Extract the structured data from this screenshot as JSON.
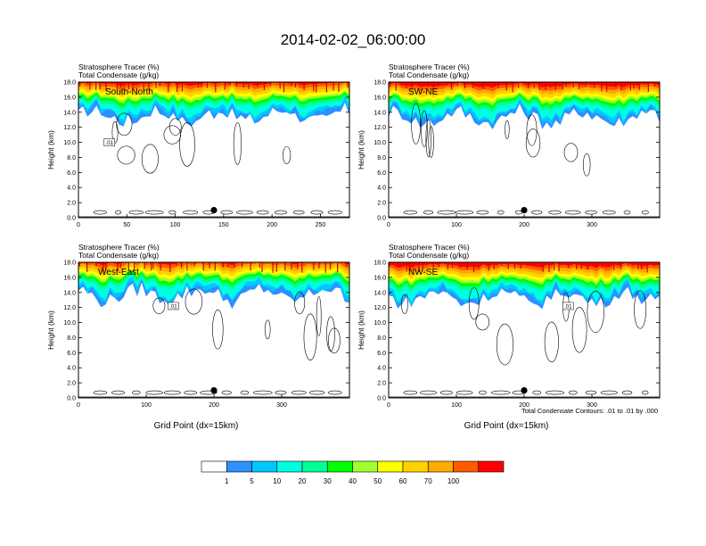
{
  "figure": {
    "title": "2014-02-02_06:00:00",
    "contour_note": "Total Condensate Contours: .01 to .01 by .000"
  },
  "colorbar": {
    "colors": [
      "#ffffff",
      "#2e8fff",
      "#00c8ff",
      "#00ffe1",
      "#00ff95",
      "#00ff00",
      "#a0ff2e",
      "#ffff00",
      "#ffd200",
      "#ffaa00",
      "#ff5a00",
      "#ff0000"
    ],
    "labels": [
      "1",
      "5",
      "10",
      "20",
      "30",
      "40",
      "50",
      "60",
      "70",
      "100"
    ]
  },
  "chart_data": [
    {
      "type": "contour",
      "name": "South-North",
      "label": "South-North",
      "title_line1": "Stratosphere Tracer   (%)",
      "title_line2": "Total Condensate   (g/kg)",
      "ylabel": "Height (km)",
      "xlabel": "",
      "xlim": [
        0,
        280
      ],
      "ylim": [
        0,
        18
      ],
      "xticks": [
        0,
        50,
        100,
        150,
        200,
        250
      ],
      "yticks": [
        "0.0",
        "2.0",
        "4.0",
        "6.0",
        "8.0",
        "10.0",
        "12.0",
        "14.0",
        "16.0",
        "18.0"
      ],
      "marker": {
        "x": 140,
        "y": 1.0
      },
      "contour_labels": [
        {
          "text": ".01",
          "x": 32,
          "y": 10.0
        }
      ],
      "tropopause_km": 15.0
    },
    {
      "type": "contour",
      "name": "SW-NE",
      "label": "SW-NE",
      "title_line1": "Stratosphere Tracer   (%)",
      "title_line2": "Total Condensate   (g/kg)",
      "ylabel": "Height (km)",
      "xlabel": "",
      "xlim": [
        0,
        400
      ],
      "ylim": [
        0,
        18
      ],
      "xticks": [
        0,
        100,
        200,
        300
      ],
      "yticks": [
        "0.0",
        "2.0",
        "4.0",
        "6.0",
        "8.0",
        "10.0",
        "12.0",
        "14.0",
        "16.0",
        "18.0"
      ],
      "marker": {
        "x": 200,
        "y": 1.0
      },
      "contour_labels": [],
      "tropopause_km": 14.8
    },
    {
      "type": "contour",
      "name": "West-East",
      "label": "West-East",
      "title_line1": "Stratosphere Tracer   (%)",
      "title_line2": "Total Condensate   (g/kg)",
      "ylabel": "Height (km)",
      "xlabel": "Grid Point (dx=15km)",
      "xlim": [
        0,
        400
      ],
      "ylim": [
        0,
        18
      ],
      "xticks": [
        0,
        100,
        200,
        300
      ],
      "yticks": [
        "0.0",
        "2.0",
        "4.0",
        "6.0",
        "8.0",
        "10.0",
        "12.0",
        "14.0",
        "16.0",
        "18.0"
      ],
      "marker": {
        "x": 200,
        "y": 1.0
      },
      "contour_labels": [
        {
          "text": ".01",
          "x": 140,
          "y": 12.2
        }
      ],
      "tropopause_km": 15.2
    },
    {
      "type": "contour",
      "name": "NW-SE",
      "label": "NW-SE",
      "title_line1": "Stratosphere Tracer   (%)",
      "title_line2": "Total Condensate   (g/kg)",
      "ylabel": "Height (km)",
      "xlabel": "Grid Point (dx=15km)",
      "xlim": [
        0,
        400
      ],
      "ylim": [
        0,
        18
      ],
      "xticks": [
        0,
        100,
        200,
        300
      ],
      "yticks": [
        "0.0",
        "2.0",
        "4.0",
        "6.0",
        "8.0",
        "10.0",
        "12.0",
        "14.0",
        "16.0",
        "18.0"
      ],
      "marker": {
        "x": 200,
        "y": 1.0
      },
      "contour_labels": [
        {
          "text": ".01",
          "x": 265,
          "y": 12.2
        }
      ],
      "tropopause_km": 14.8
    }
  ]
}
